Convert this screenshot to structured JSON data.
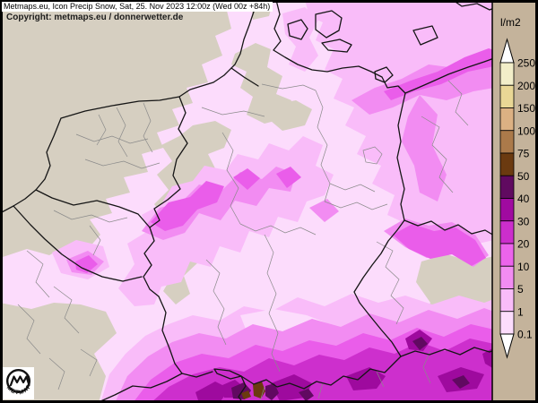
{
  "header": {
    "title": "Metmaps.eu, Icon Precip Snow, Sat, 25. Nov 2023 12:00z (Wed 00z +84h)",
    "copyright": "Copyright: metmaps.eu / donnerwetter.de"
  },
  "logo": {
    "text": "METMAPS"
  },
  "legend": {
    "unit": "l/m2",
    "boundaries": [
      "250",
      "200",
      "150",
      "100",
      "75",
      "50",
      "40",
      "30",
      "20",
      "10",
      "5",
      "1",
      "0.1"
    ],
    "segment_colors": [
      "#f2eec9",
      "#e9d795",
      "#dcb183",
      "#ab7a4a",
      "#6b3a10",
      "#600a60",
      "#a00aa0",
      "#cc2ecc",
      "#ec64ec",
      "#f28cf2",
      "#f9bcf9",
      "#fcdcfc"
    ],
    "arrow_color": "#ffffff",
    "panel_color": "#c4b39b"
  },
  "colors": {
    "background_land": "#d6cfc1",
    "title_strip_bg": "#ffffff",
    "frame": "#000000",
    "border_country": "#151515",
    "border_state": "#8a8a8a",
    "legend_panel": "#c4b39b",
    "precip": {
      "p0_1": "#fcdcfc",
      "p1": "#f9bcf9",
      "p5": "#f28cf2",
      "p10": "#ea5dea",
      "p20": "#cd2fcd",
      "p30": "#9e0a9e",
      "p40": "#610961",
      "p50": "#6b3a10"
    }
  }
}
